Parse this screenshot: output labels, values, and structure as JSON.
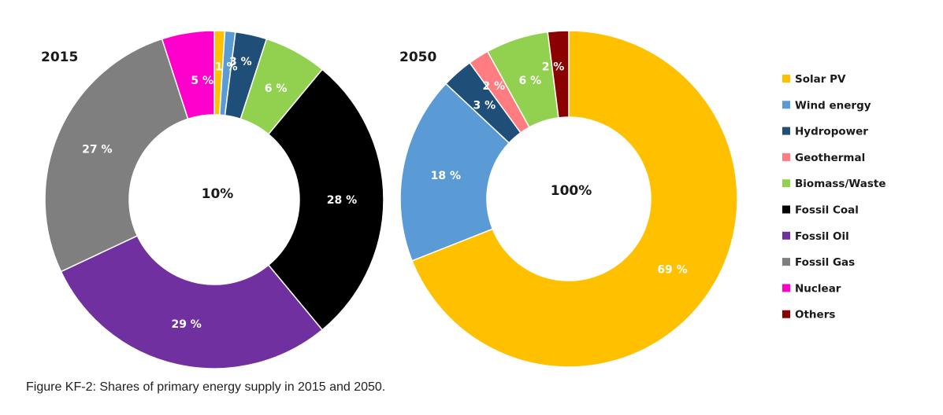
{
  "caption": "Figure KF-2: Shares of primary energy supply in 2015 and 2050.",
  "legend": [
    {
      "label": "Solar PV",
      "color": "#FFC000"
    },
    {
      "label": "Wind energy",
      "color": "#5B9BD5"
    },
    {
      "label": "Hydropower",
      "color": "#1F4E79"
    },
    {
      "label": "Geothermal",
      "color": "#FF7C80"
    },
    {
      "label": "Biomass/Waste",
      "color": "#92D050"
    },
    {
      "label": "Fossil Coal",
      "color": "#000000"
    },
    {
      "label": "Fossil Oil",
      "color": "#7030A0"
    },
    {
      "label": "Fossil Gas",
      "color": "#7F7F7F"
    },
    {
      "label": "Nuclear",
      "color": "#FF00CC"
    },
    {
      "label": "Others",
      "color": "#8B0000"
    }
  ],
  "chart_data": [
    {
      "type": "pie",
      "style": "donut",
      "title": "2015",
      "center_label": "10%",
      "slices": [
        {
          "name": "Solar PV",
          "value": 1,
          "label": "",
          "color": "#FFC000"
        },
        {
          "name": "Wind energy",
          "value": 1,
          "label": "1 %",
          "color": "#5B9BD5"
        },
        {
          "name": "Hydropower",
          "value": 3,
          "label": "3 %",
          "color": "#1F4E79"
        },
        {
          "name": "Geothermal",
          "value": 0,
          "label": "",
          "color": "#FF7C80"
        },
        {
          "name": "Biomass/Waste",
          "value": 6,
          "label": "6 %",
          "color": "#92D050"
        },
        {
          "name": "Fossil Coal",
          "value": 28,
          "label": "28 %",
          "color": "#000000"
        },
        {
          "name": "Fossil Oil",
          "value": 29,
          "label": "29 %",
          "color": "#7030A0"
        },
        {
          "name": "Fossil Gas",
          "value": 27,
          "label": "27 %",
          "color": "#7F7F7F"
        },
        {
          "name": "Nuclear",
          "value": 5,
          "label": "5 %",
          "color": "#FF00CC"
        }
      ]
    },
    {
      "type": "pie",
      "style": "donut",
      "title": "2050",
      "center_label": "100%",
      "slices": [
        {
          "name": "Solar PV",
          "value": 69,
          "label": "69 %",
          "color": "#FFC000"
        },
        {
          "name": "Wind energy",
          "value": 18,
          "label": "18 %",
          "color": "#5B9BD5"
        },
        {
          "name": "Hydropower",
          "value": 3,
          "label": "3 %",
          "color": "#1F4E79"
        },
        {
          "name": "Geothermal",
          "value": 2,
          "label": "2 %",
          "color": "#FF7C80"
        },
        {
          "name": "Biomass/Waste",
          "value": 6,
          "label": "6 %",
          "color": "#92D050"
        },
        {
          "name": "Others",
          "value": 2,
          "label": "2 %",
          "color": "#8B0000"
        }
      ]
    }
  ]
}
